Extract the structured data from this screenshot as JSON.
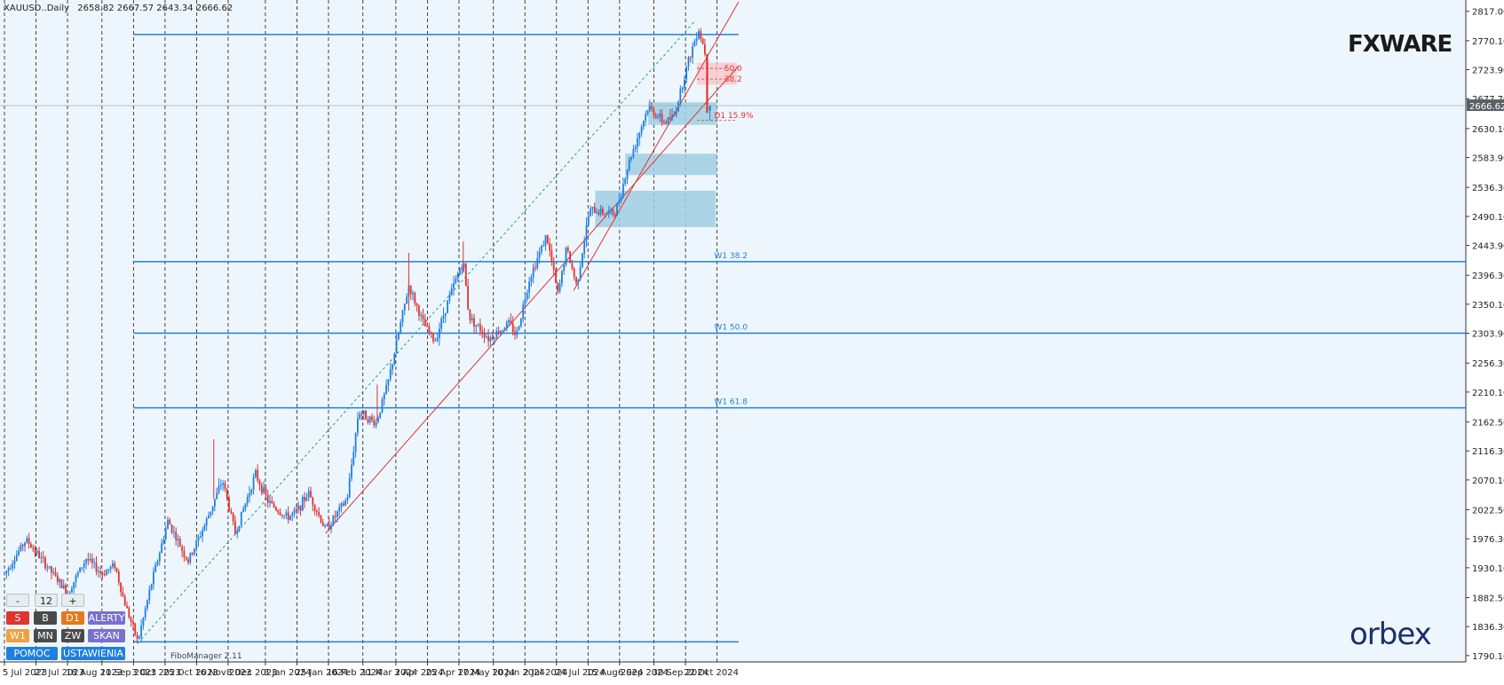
{
  "header": {
    "symbol": "XAUUSD..Daily",
    "ohlc": "2658.82 2667.57 2643.34 2666.62"
  },
  "colors": {
    "background": "#eef6fd",
    "bull": "#1f7fe0",
    "bear": "#e0342f",
    "grid": "#1a1a1a",
    "level_line": "#1f7fe0",
    "trendline": "#e0342f",
    "zone_blue": "#9fcfe3",
    "zone_red": "#f8c8d0"
  },
  "brand": {
    "logo_primary": "FXWARE",
    "logo_secondary": "orbex",
    "indicator_label": "FiboManager 2.11"
  },
  "price_panel": {
    "current_price": "2666.62"
  },
  "chart_data": {
    "type": "candlestick",
    "instrument": "XAUUSD",
    "timeframe": "Daily",
    "y_axis_ticks": [
      2817.0,
      2770.1,
      2723.9,
      2677.7,
      2630.1,
      2583.9,
      2536.3,
      2490.1,
      2443.9,
      2396.3,
      2350.1,
      2303.9,
      2256.3,
      2210.1,
      2162.5,
      2116.3,
      2070.1,
      2022.5,
      1976.3,
      1930.1,
      1882.5,
      1836.3,
      1790.1
    ],
    "y_axis_tick_labels": [
      "2817.00",
      "2770.10",
      "2723.90",
      "2677.70",
      "2630.10",
      "2583.90",
      "2536.30",
      "2490.10",
      "2443.90",
      "2396.30",
      "2350.10",
      "2303.90",
      "2256.30",
      "2210.10",
      "2162.50",
      "2116.30",
      "2070.10",
      "2022.50",
      "1976.30",
      "1930.10",
      "1882.50",
      "1836.30",
      "1790.10"
    ],
    "ylim": [
      1780,
      2835
    ],
    "x_axis_labels": [
      "5 Jul 2023",
      "27 Jul 2023",
      "18 Aug 2023",
      "11 Sep 2023",
      "3 Oct 2023",
      "25 Oct 2023",
      "16 Nov 2023",
      "8 Dec 2023",
      "3 Jan 2024",
      "25 Jan 2024",
      "16 Feb 2024",
      "11 Mar 2024",
      "3 Apr 2024",
      "25 Apr 2024",
      "17 May 2024",
      "10 Jun 2024",
      "2 Jul 2024",
      "24 Jul 2024",
      "15 Aug 2024",
      "6 Sep 2024",
      "30 Sep 2024",
      "22 Oct 2024"
    ],
    "ohlc_path": [
      [
        "2023-07-05",
        1920
      ],
      [
        "2023-07-20",
        1975
      ],
      [
        "2023-07-27",
        1955
      ],
      [
        "2023-08-18",
        1890
      ],
      [
        "2023-08-31",
        1945
      ],
      [
        "2023-09-11",
        1920
      ],
      [
        "2023-09-20",
        1935
      ],
      [
        "2023-09-26",
        1880
      ],
      [
        "2023-10-06",
        1812
      ],
      [
        "2023-10-16",
        1910
      ],
      [
        "2023-10-27",
        2005
      ],
      [
        "2023-11-10",
        1940
      ],
      [
        "2023-11-22",
        2000
      ],
      [
        "2023-12-04",
        2070
      ],
      [
        "2023-12-13",
        1985
      ],
      [
        "2023-12-27",
        2080
      ],
      [
        "2024-01-05",
        2035
      ],
      [
        "2024-01-18",
        2010
      ],
      [
        "2024-01-25",
        2020
      ],
      [
        "2024-02-02",
        2050
      ],
      [
        "2024-02-14",
        1990
      ],
      [
        "2024-02-29",
        2040
      ],
      [
        "2024-03-08",
        2180
      ],
      [
        "2024-03-20",
        2160
      ],
      [
        "2024-03-28",
        2220
      ],
      [
        "2024-04-12",
        2380
      ],
      [
        "2024-04-22",
        2320
      ],
      [
        "2024-04-30",
        2290
      ],
      [
        "2024-05-10",
        2360
      ],
      [
        "2024-05-20",
        2420
      ],
      [
        "2024-05-24",
        2330
      ],
      [
        "2024-06-07",
        2295
      ],
      [
        "2024-06-21",
        2320
      ],
      [
        "2024-06-26",
        2300
      ],
      [
        "2024-07-05",
        2390
      ],
      [
        "2024-07-17",
        2460
      ],
      [
        "2024-07-25",
        2365
      ],
      [
        "2024-07-31",
        2440
      ],
      [
        "2024-08-07",
        2380
      ],
      [
        "2024-08-16",
        2500
      ],
      [
        "2024-09-03",
        2495
      ],
      [
        "2024-09-13",
        2580
      ],
      [
        "2024-09-26",
        2665
      ],
      [
        "2024-10-07",
        2640
      ],
      [
        "2024-10-14",
        2650
      ],
      [
        "2024-10-23",
        2730
      ],
      [
        "2024-10-31",
        2790
      ],
      [
        "2024-11-06",
        2740
      ],
      [
        "2024-11-07",
        2650
      ],
      [
        "2024-11-08",
        2666
      ]
    ],
    "last_bar": {
      "open": 2658.82,
      "high": 2667.57,
      "low": 2643.34,
      "close": 2666.62
    },
    "horizontal_levels": [
      {
        "label": "",
        "value": 2780
      },
      {
        "label": "W1 38.2",
        "value": 2418
      },
      {
        "label": "W1 50.0",
        "value": 2304
      },
      {
        "label": "W1 61.8",
        "value": 2185
      },
      {
        "label": "",
        "value": 1812
      }
    ],
    "zones": [
      {
        "kind": "supply",
        "label_a": "50.0",
        "label_b": "38.2",
        "top": 2735,
        "bottom": 2700
      },
      {
        "kind": "demand",
        "label": "D1 15.9%",
        "top": 2672,
        "bottom": 2636
      },
      {
        "kind": "demand",
        "label": "",
        "top": 2590,
        "bottom": 2556
      },
      {
        "kind": "demand",
        "label": "",
        "top": 2531,
        "bottom": 2473
      }
    ],
    "trendlines": [
      {
        "style": "solid",
        "from": [
          "2024-02-14",
          1985
        ],
        "to": [
          "2024-11-28",
          2730
        ]
      },
      {
        "style": "solid",
        "from": [
          "2024-08-05",
          2372
        ],
        "to": [
          "2024-11-28",
          2832
        ]
      },
      {
        "style": "dashed",
        "from": [
          "2023-10-06",
          1810
        ],
        "to": [
          "2024-10-28",
          2800
        ]
      }
    ]
  },
  "controls": {
    "row1": [
      "-",
      "12",
      "+"
    ],
    "row2": [
      "S",
      "B",
      "D1",
      "ALERTY"
    ],
    "row3": [
      "W1",
      "MN",
      "ZW",
      "SKAN"
    ],
    "row4": [
      "POMOC",
      "USTAWIENIA"
    ]
  }
}
